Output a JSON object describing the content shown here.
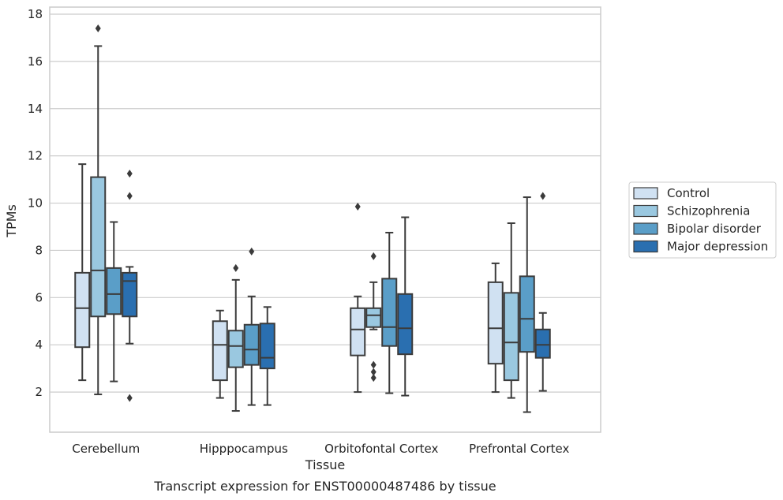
{
  "chart_data": {
    "type": "box",
    "title": "",
    "caption": "Transcript expression for ENST00000487486 by tissue",
    "xlabel": "Tissue",
    "ylabel": "TPMs",
    "ylim": [
      0.3,
      18.3
    ],
    "yticks": [
      2,
      4,
      6,
      8,
      10,
      12,
      14,
      16,
      18
    ],
    "grid": true,
    "legend_position": "right",
    "categories": [
      "Cerebellum",
      "Hipppocampus",
      "Orbitofontal Cortex",
      "Prefrontal Cortex"
    ],
    "series": [
      {
        "name": "Control",
        "color": "#d0e1f2",
        "boxes": [
          {
            "whislo": 2.5,
            "q1": 3.9,
            "med": 5.55,
            "q3": 7.05,
            "whishi": 11.65,
            "fliers": []
          },
          {
            "whislo": 1.75,
            "q1": 2.5,
            "med": 4.0,
            "q3": 5.0,
            "whishi": 5.45,
            "fliers": []
          },
          {
            "whislo": 2.0,
            "q1": 3.55,
            "med": 4.65,
            "q3": 5.55,
            "whishi": 6.05,
            "fliers": [
              9.85
            ]
          },
          {
            "whislo": 2.0,
            "q1": 3.2,
            "med": 4.7,
            "q3": 6.65,
            "whishi": 7.45,
            "fliers": []
          }
        ]
      },
      {
        "name": "Schizophrenia",
        "color": "#9ac8e0",
        "boxes": [
          {
            "whislo": 1.9,
            "q1": 5.2,
            "med": 7.15,
            "q3": 11.1,
            "whishi": 16.65,
            "fliers": [
              17.4
            ]
          },
          {
            "whislo": 1.2,
            "q1": 3.05,
            "med": 3.95,
            "q3": 4.6,
            "whishi": 6.75,
            "fliers": [
              7.25
            ]
          },
          {
            "whislo": 4.65,
            "q1": 4.75,
            "med": 5.25,
            "q3": 5.55,
            "whishi": 6.65,
            "fliers": [
              7.75,
              3.15,
              2.85,
              2.6
            ]
          },
          {
            "whislo": 1.75,
            "q1": 2.5,
            "med": 4.1,
            "q3": 6.2,
            "whishi": 9.15,
            "fliers": []
          }
        ]
      },
      {
        "name": "Bipolar disorder",
        "color": "#5a9ec8",
        "boxes": [
          {
            "whislo": 2.45,
            "q1": 5.3,
            "med": 6.15,
            "q3": 7.25,
            "whishi": 9.2,
            "fliers": []
          },
          {
            "whislo": 1.45,
            "q1": 3.15,
            "med": 3.8,
            "q3": 4.85,
            "whishi": 6.05,
            "fliers": [
              7.95
            ]
          },
          {
            "whislo": 1.95,
            "q1": 3.95,
            "med": 4.75,
            "q3": 6.8,
            "whishi": 8.75,
            "fliers": []
          },
          {
            "whislo": 1.15,
            "q1": 3.7,
            "med": 5.1,
            "q3": 6.9,
            "whishi": 10.25,
            "fliers": []
          }
        ]
      },
      {
        "name": "Major depression",
        "color": "#2a6fb0",
        "boxes": [
          {
            "whislo": 4.05,
            "q1": 5.2,
            "med": 6.7,
            "q3": 7.05,
            "whishi": 7.3,
            "fliers": [
              11.25,
              10.3,
              1.75
            ]
          },
          {
            "whislo": 1.45,
            "q1": 3.0,
            "med": 3.45,
            "q3": 4.9,
            "whishi": 5.6,
            "fliers": []
          },
          {
            "whislo": 1.85,
            "q1": 3.6,
            "med": 4.7,
            "q3": 6.15,
            "whishi": 9.4,
            "fliers": []
          },
          {
            "whislo": 2.05,
            "q1": 3.45,
            "med": 4.0,
            "q3": 4.65,
            "whishi": 5.35,
            "fliers": [
              10.3
            ]
          }
        ]
      }
    ],
    "colors": {
      "grid": "#cccccc",
      "frame": "#cccccc",
      "line": "#3b3b3b"
    }
  }
}
